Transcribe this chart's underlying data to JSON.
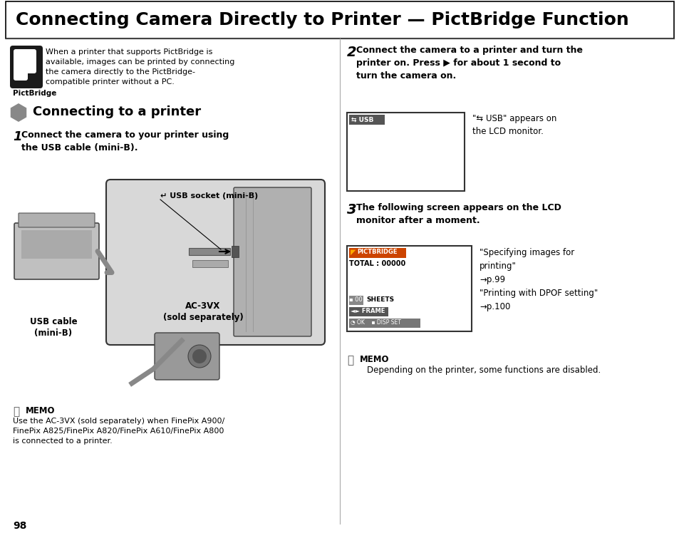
{
  "bg_color": "#ffffff",
  "page_num": "98",
  "title": "Connecting Camera Directly to Printer — PictBridge Function",
  "section_header": "Connecting to a printer",
  "step1_line1": "1  Connect the camera to your printer using",
  "step1_line2": "    the USB cable (mini-B).",
  "step2_num": "2",
  "step2_text": " Connect the camera to a printer and turn the\n   printer on. Press ▶ for about 1 second to\n   turn the camera on.",
  "step2_note1": "\"⇆ USB\" appears on",
  "step2_note2": "the LCD monitor.",
  "step3_num": "3",
  "step3_text": " The following screen appears on the LCD\n   monitor after a moment.",
  "step3_note": "\"Specifying images for\nprinting\"\n→p.99\n\"Printing with DPOF setting\"\n→p.100",
  "pictbridge_intro": "When a printer that supports PictBridge is\navailable, images can be printed by connecting\nthe camera directly to the PictBridge-\ncompatible printer without a PC.",
  "pictbridge_label": "PictBridge",
  "usb_label": "↵  USB socket (mini-B)",
  "ac_label": "AC-3VX\n(sold separately)",
  "cable_label": "USB cable\n(mini-B)",
  "memo1_title": "MEMO",
  "memo1_text": "Use the AC-3VX (sold separately) when FinePix A900/\nFinePix A825/FinePix A820/FinePix A610/FinePix A800\nis connected to a printer.",
  "memo2_title": "MEMO",
  "memo2_text": "Depending on the printer, some functions are disabled."
}
